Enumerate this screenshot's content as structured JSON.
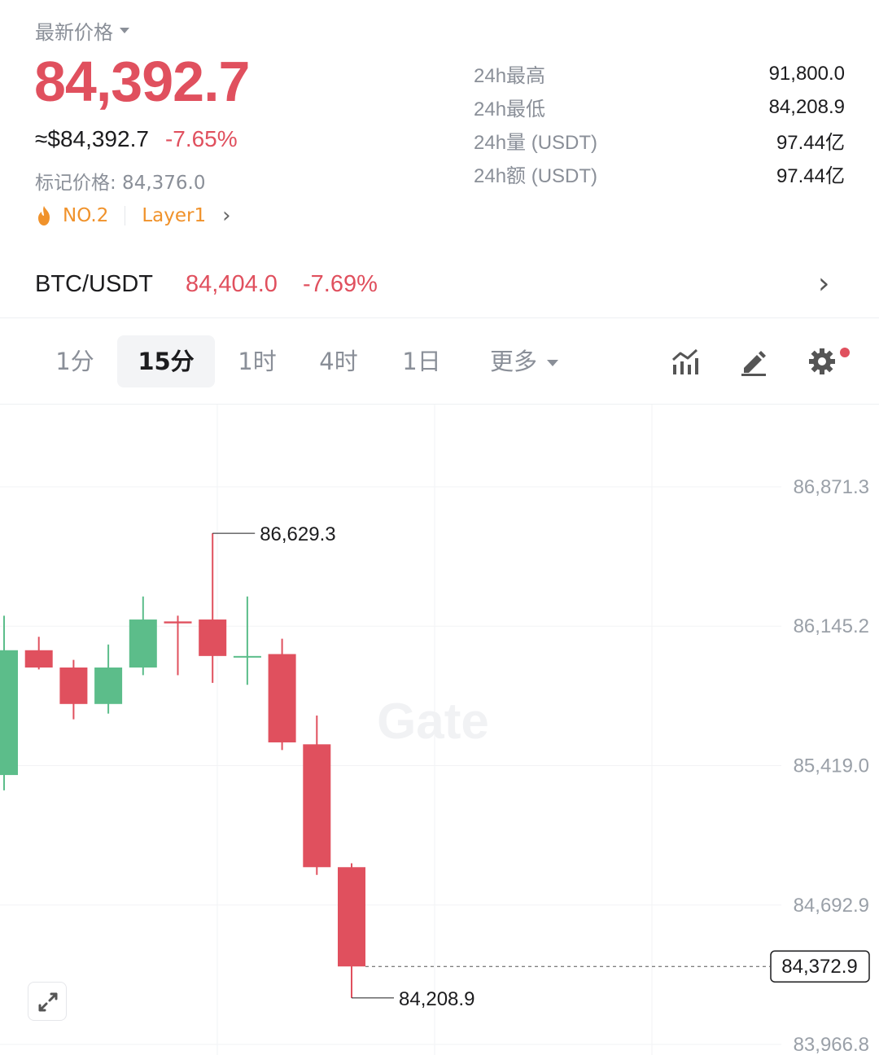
{
  "header": {
    "latest_label": "最新价格",
    "price": "84,392.7",
    "usd_price": "≈$84,392.7",
    "change": "-7.65%",
    "mark_price": "标记价格: 84,376.0",
    "rank": "NO.2",
    "category": "Layer1"
  },
  "stats": [
    {
      "label": "24h最高",
      "value": "91,800.0"
    },
    {
      "label": "24h最低",
      "value": "84,208.9"
    },
    {
      "label": "24h量 (USDT)",
      "value": "97.44亿"
    },
    {
      "label": "24h额 (USDT)",
      "value": "97.44亿"
    }
  ],
  "pair": {
    "name": "BTC/USDT",
    "price": "84,404.0",
    "change": "-7.69%"
  },
  "tabs": [
    {
      "label": "1分",
      "active": false
    },
    {
      "label": "15分",
      "active": true
    },
    {
      "label": "1时",
      "active": false
    },
    {
      "label": "4时",
      "active": false
    },
    {
      "label": "1日",
      "active": false
    },
    {
      "label": "更多",
      "active": false
    }
  ],
  "toolbar_icons": [
    "indicator-icon",
    "draw-icon",
    "settings-icon"
  ],
  "colors": {
    "up": "#5cbd8a",
    "down": "#e0505e",
    "accent": "#f0922b"
  },
  "chart_data": {
    "type": "candlestick",
    "interval": "15分",
    "watermark": "Gate",
    "y_ticks": [
      "86,871.3",
      "86,145.2",
      "85,419.0",
      "84,692.9",
      "83,966.8"
    ],
    "ylim": [
      83966.8,
      86871.3
    ],
    "candles": [
      {
        "open": 85370,
        "high": 86200,
        "low": 85290,
        "close": 86020
      },
      {
        "open": 86020,
        "high": 86090,
        "low": 85920,
        "close": 85930
      },
      {
        "open": 85930,
        "high": 85970,
        "low": 85660,
        "close": 85740
      },
      {
        "open": 85740,
        "high": 86050,
        "low": 85690,
        "close": 85930
      },
      {
        "open": 85930,
        "high": 86300,
        "low": 85890,
        "close": 86180
      },
      {
        "open": 86170,
        "high": 86200,
        "low": 85890,
        "close": 86160
      },
      {
        "open": 86180,
        "high": 86629.3,
        "low": 85850,
        "close": 85990
      },
      {
        "open": 85990,
        "high": 86300,
        "low": 85840,
        "close": 85990
      },
      {
        "open": 86000,
        "high": 86080,
        "low": 85500,
        "close": 85540
      },
      {
        "open": 85530,
        "high": 85680,
        "low": 84850,
        "close": 84890
      },
      {
        "open": 84890,
        "high": 84910,
        "low": 84208.9,
        "close": 84372.9
      }
    ],
    "high_label": "86,629.3",
    "low_label": "84,208.9",
    "last_price": "84,372.9"
  }
}
